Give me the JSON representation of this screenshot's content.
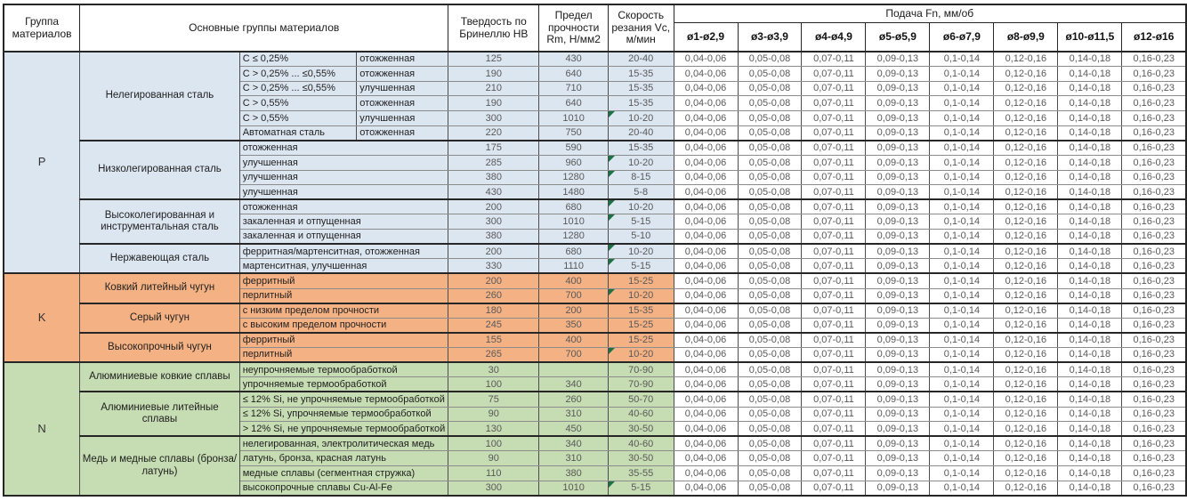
{
  "header": {
    "col_group": "Группа материалов",
    "col_materials": "Основные группы материалов",
    "col_hb": "Твердость по Бринеллю HB",
    "col_rm": "Предел прочности Rm, Н/мм2",
    "col_vc": "Скорость резания Vc, м/мин",
    "col_feed": "Подача Fn, мм/об",
    "diameters": [
      "ø1-ø2,9",
      "ø3-ø3,9",
      "ø4-ø4,9",
      "ø5-ø5,9",
      "ø6-ø7,9",
      "ø8-ø9,9",
      "ø10-ø11,5",
      "ø12-ø16"
    ]
  },
  "feed_values": [
    "0,04-0,06",
    "0,05-0,08",
    "0,07-0,11",
    "0,09-0,13",
    "0,1-0,14",
    "0,12-0,16",
    "0,14-0,18",
    "0,16-0,23"
  ],
  "colors": {
    "group_p": "#dce6f1",
    "group_k": "#f4b183",
    "group_n": "#c6dcb2",
    "marker": "#1e7145",
    "border_dark": "#262626",
    "text_muted": "#595959"
  },
  "groups": [
    {
      "code": "P",
      "color": "#dce6f1",
      "families": [
        {
          "name": "Нелегированная сталь",
          "rows": [
            {
              "sub": "C ≤ 0,25%",
              "state": "отожженная",
              "hb": "125",
              "rm": "430",
              "vc": "20-40",
              "marker": false
            },
            {
              "sub": "C > 0,25% ... ≤0,55%",
              "state": "отожженная",
              "hb": "190",
              "rm": "640",
              "vc": "15-35",
              "marker": false
            },
            {
              "sub": "C > 0,25% ... ≤0,55%",
              "state": "улучшенная",
              "hb": "210",
              "rm": "710",
              "vc": "15-35",
              "marker": false
            },
            {
              "sub": "C > 0,55%",
              "state": "отожженная",
              "hb": "190",
              "rm": "640",
              "vc": "15-35",
              "marker": false
            },
            {
              "sub": "C > 0,55%",
              "state": "улучшенная",
              "hb": "300",
              "rm": "1010",
              "vc": "10-20",
              "marker": true
            },
            {
              "sub": "Автоматная сталь",
              "state": "отожженная",
              "hb": "220",
              "rm": "750",
              "vc": "20-40",
              "marker": false
            }
          ]
        },
        {
          "name": "Низколегированная сталь",
          "rows": [
            {
              "sub": "отожженная",
              "hb": "175",
              "rm": "590",
              "vc": "15-35",
              "marker": false
            },
            {
              "sub": "улучшенная",
              "hb": "285",
              "rm": "960",
              "vc": "10-20",
              "marker": true
            },
            {
              "sub": "улучшенная",
              "hb": "380",
              "rm": "1280",
              "vc": "8-15",
              "marker": true
            },
            {
              "sub": "улучшенная",
              "hb": "430",
              "rm": "1480",
              "vc": "5-8",
              "marker": false
            }
          ]
        },
        {
          "name": "Высоколегированная и инструментальная сталь",
          "rows": [
            {
              "sub": "отожженная",
              "hb": "200",
              "rm": "680",
              "vc": "10-20",
              "marker": true
            },
            {
              "sub": "закаленная и отпущенная",
              "hb": "300",
              "rm": "1010",
              "vc": "5-15",
              "marker": true
            },
            {
              "sub": "закаленная и отпущенная",
              "hb": "380",
              "rm": "1280",
              "vc": "5-10",
              "marker": false
            }
          ]
        },
        {
          "name": "Нержавеющая сталь",
          "rows": [
            {
              "sub": "ферритная/мартенситная, отожженная",
              "hb": "200",
              "rm": "680",
              "vc": "10-20",
              "marker": true
            },
            {
              "sub": "мартенситная, улучшенная",
              "hb": "330",
              "rm": "1110",
              "vc": "5-15",
              "marker": true
            }
          ]
        }
      ]
    },
    {
      "code": "K",
      "color": "#f4b183",
      "families": [
        {
          "name": "Ковкий литейный чугун",
          "rows": [
            {
              "sub": "ферритный",
              "hb": "200",
              "rm": "400",
              "vc": "15-25",
              "marker": false
            },
            {
              "sub": "перлитный",
              "hb": "260",
              "rm": "700",
              "vc": "10-20",
              "marker": true
            }
          ]
        },
        {
          "name": "Серый чугун",
          "rows": [
            {
              "sub": "с низким пределом прочности",
              "hb": "180",
              "rm": "200",
              "vc": "15-35",
              "marker": false
            },
            {
              "sub": "с высоким пределом прочности",
              "hb": "245",
              "rm": "350",
              "vc": "15-25",
              "marker": false
            }
          ]
        },
        {
          "name": "Высокопрочный чугун",
          "rows": [
            {
              "sub": "ферритный",
              "hb": "155",
              "rm": "400",
              "vc": "15-25",
              "marker": false
            },
            {
              "sub": "перлитный",
              "hb": "265",
              "rm": "700",
              "vc": "10-20",
              "marker": true
            }
          ]
        }
      ]
    },
    {
      "code": "N",
      "color": "#c6dcb2",
      "families": [
        {
          "name": "Алюминиевые ковкие сплавы",
          "rows": [
            {
              "sub": "неупрочняемые термообработкой",
              "hb": "30",
              "rm": "",
              "vc": "70-90",
              "marker": false
            },
            {
              "sub": "упрочняемые термообработкой",
              "hb": "100",
              "rm": "340",
              "vc": "70-90",
              "marker": false
            }
          ]
        },
        {
          "name": "Алюминиевые литейные сплавы",
          "rows": [
            {
              "sub": "≤ 12% Si, не упрочняемые термообработкой",
              "hb": "75",
              "rm": "260",
              "vc": "50-70",
              "marker": false
            },
            {
              "sub": "≤ 12% Si, упрочняемые термообработкой",
              "hb": "90",
              "rm": "310",
              "vc": "40-60",
              "marker": false
            },
            {
              "sub": "> 12% Si, не упрочняемые термообработкой",
              "hb": "130",
              "rm": "450",
              "vc": "30-50",
              "marker": false
            }
          ]
        },
        {
          "name": "Медь и медные сплавы (бронза/латунь)",
          "rows": [
            {
              "sub": "нелегированная, электролитическая медь",
              "hb": "100",
              "rm": "340",
              "vc": "40-60",
              "marker": false
            },
            {
              "sub": "латунь, бронза, красная латунь",
              "hb": "90",
              "rm": "310",
              "vc": "30-50",
              "marker": false
            },
            {
              "sub": "медные сплавы (сегментная стружка)",
              "hb": "110",
              "rm": "380",
              "vc": "35-55",
              "marker": false
            },
            {
              "sub": "высокопрочные сплавы Cu-Al-Fe",
              "hb": "300",
              "rm": "1010",
              "vc": "5-15",
              "marker": true
            }
          ]
        }
      ]
    }
  ]
}
